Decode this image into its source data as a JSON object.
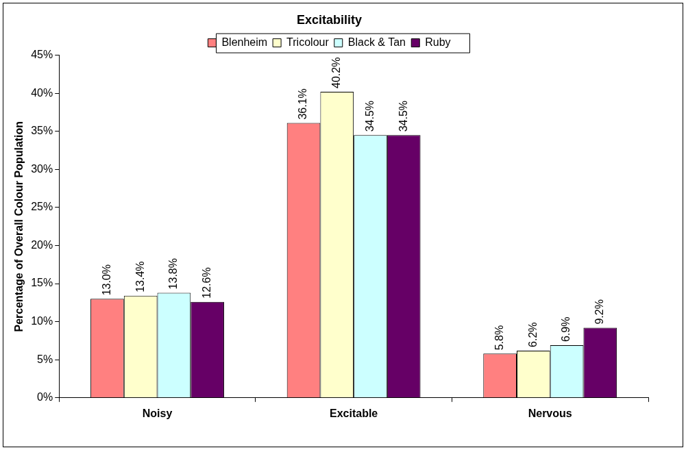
{
  "chart_data": {
    "type": "bar",
    "title": "Excitability",
    "ylabel": "Percentage of Overall Colour Population",
    "categories": [
      "Noisy",
      "Excitable",
      "Nervous"
    ],
    "series": [
      {
        "name": "Blenheim",
        "color": "#ff8080",
        "values": [
          13.0,
          36.1,
          5.8
        ],
        "value_labels": [
          "13.0%",
          "36.1%",
          "5.8%"
        ]
      },
      {
        "name": "Tricolour",
        "color": "#ffffcc",
        "values": [
          13.4,
          40.2,
          6.2
        ],
        "value_labels": [
          "13.4%",
          "40.2%",
          "6.2%"
        ]
      },
      {
        "name": "Black & Tan",
        "color": "#ccffff",
        "values": [
          13.8,
          34.5,
          6.9
        ],
        "value_labels": [
          "13.8%",
          "34.5%",
          "6.9%"
        ]
      },
      {
        "name": "Ruby",
        "color": "#660066",
        "values": [
          12.6,
          34.5,
          9.2
        ],
        "value_labels": [
          "12.6%",
          "34.5%",
          "9.2%"
        ]
      }
    ],
    "ylim": [
      0,
      45
    ],
    "yticks": [
      {
        "value": 0,
        "label": "0%"
      },
      {
        "value": 5,
        "label": "5%"
      },
      {
        "value": 10,
        "label": "10%"
      },
      {
        "value": 15,
        "label": "15%"
      },
      {
        "value": 20,
        "label": "20%"
      },
      {
        "value": 25,
        "label": "25%"
      },
      {
        "value": 30,
        "label": "30%"
      },
      {
        "value": 35,
        "label": "35%"
      },
      {
        "value": 40,
        "label": "40%"
      },
      {
        "value": 45,
        "label": "45%"
      }
    ],
    "grid": false,
    "legend": "top"
  }
}
